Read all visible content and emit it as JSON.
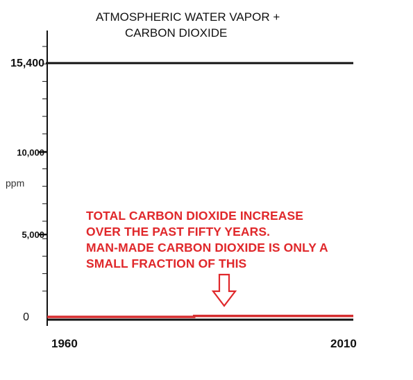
{
  "chart_data": {
    "type": "line",
    "title_lines": [
      "ATMOSPHERIC WATER VAPOR +",
      "CARBON DIOXIDE"
    ],
    "ylabel": "ppm",
    "xlabel": "",
    "x_ticks": [
      "1960",
      "2010"
    ],
    "y_ticks": [
      "15,400",
      "10,000",
      "5,000",
      "0"
    ],
    "y_tick_values": [
      15400,
      10000,
      5000,
      0
    ],
    "xlim": [
      1960,
      2010
    ],
    "ylim": [
      0,
      15400
    ],
    "series": [
      {
        "color": "#111111",
        "x": [
          1960,
          2010
        ],
        "y": [
          15400,
          15400
        ]
      },
      {
        "color": "#d62d2f",
        "x": [
          1960,
          1984,
          1984,
          2010
        ],
        "y": [
          0,
          0,
          60,
          60
        ]
      }
    ],
    "annotation_lines": [
      "TOTAL CARBON DIOXIDE INCREASE",
      "OVER THE PAST FIFTY YEARS.",
      "MAN-MADE CARBON DIOXIDE IS ONLY A",
      "SMALL FRACTION OF THIS"
    ],
    "annotation_color": "#e0282b",
    "arrow_direction": "down"
  }
}
